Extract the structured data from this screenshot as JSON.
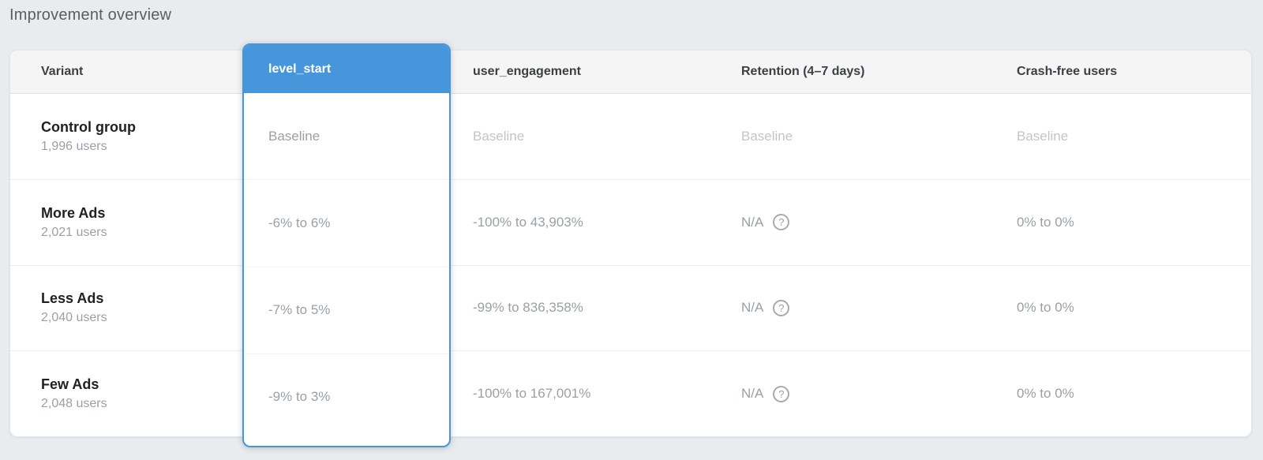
{
  "page": {
    "title": "Improvement overview"
  },
  "colors": {
    "accent_blue": "#4596db",
    "page_background": "#e9ecee",
    "header_background": "#f5f5f5",
    "value_gray": "#9aa0a6",
    "baseline_gray": "#c1c5c9"
  },
  "icons": {
    "help_glyph": "?"
  },
  "table": {
    "columns": [
      {
        "id": "variant",
        "label": "Variant",
        "highlighted": false
      },
      {
        "id": "level_start",
        "label": "level_start",
        "highlighted": true
      },
      {
        "id": "user_engagement",
        "label": "user_engagement",
        "highlighted": false
      },
      {
        "id": "retention",
        "label": "Retention (4–7 days)",
        "highlighted": false
      },
      {
        "id": "crash_free",
        "label": "Crash-free users",
        "highlighted": false
      }
    ],
    "rows": [
      {
        "variant": "Control group",
        "users": "1,996 users",
        "level_start": "Baseline",
        "user_engagement": "Baseline",
        "retention": "Baseline",
        "crash_free": "Baseline",
        "is_baseline": true
      },
      {
        "variant": "More Ads",
        "users": "2,021 users",
        "level_start": "-6% to 6%",
        "user_engagement": "-100% to 43,903%",
        "retention": "N/A",
        "crash_free": "0% to 0%",
        "is_baseline": false
      },
      {
        "variant": "Less Ads",
        "users": "2,040 users",
        "level_start": "-7% to 5%",
        "user_engagement": "-99% to 836,358%",
        "retention": "N/A",
        "crash_free": "0% to 0%",
        "is_baseline": false
      },
      {
        "variant": "Few Ads",
        "users": "2,048 users",
        "level_start": "-9% to 3%",
        "user_engagement": "-100% to 167,001%",
        "retention": "N/A",
        "crash_free": "0% to 0%",
        "is_baseline": false
      }
    ]
  }
}
